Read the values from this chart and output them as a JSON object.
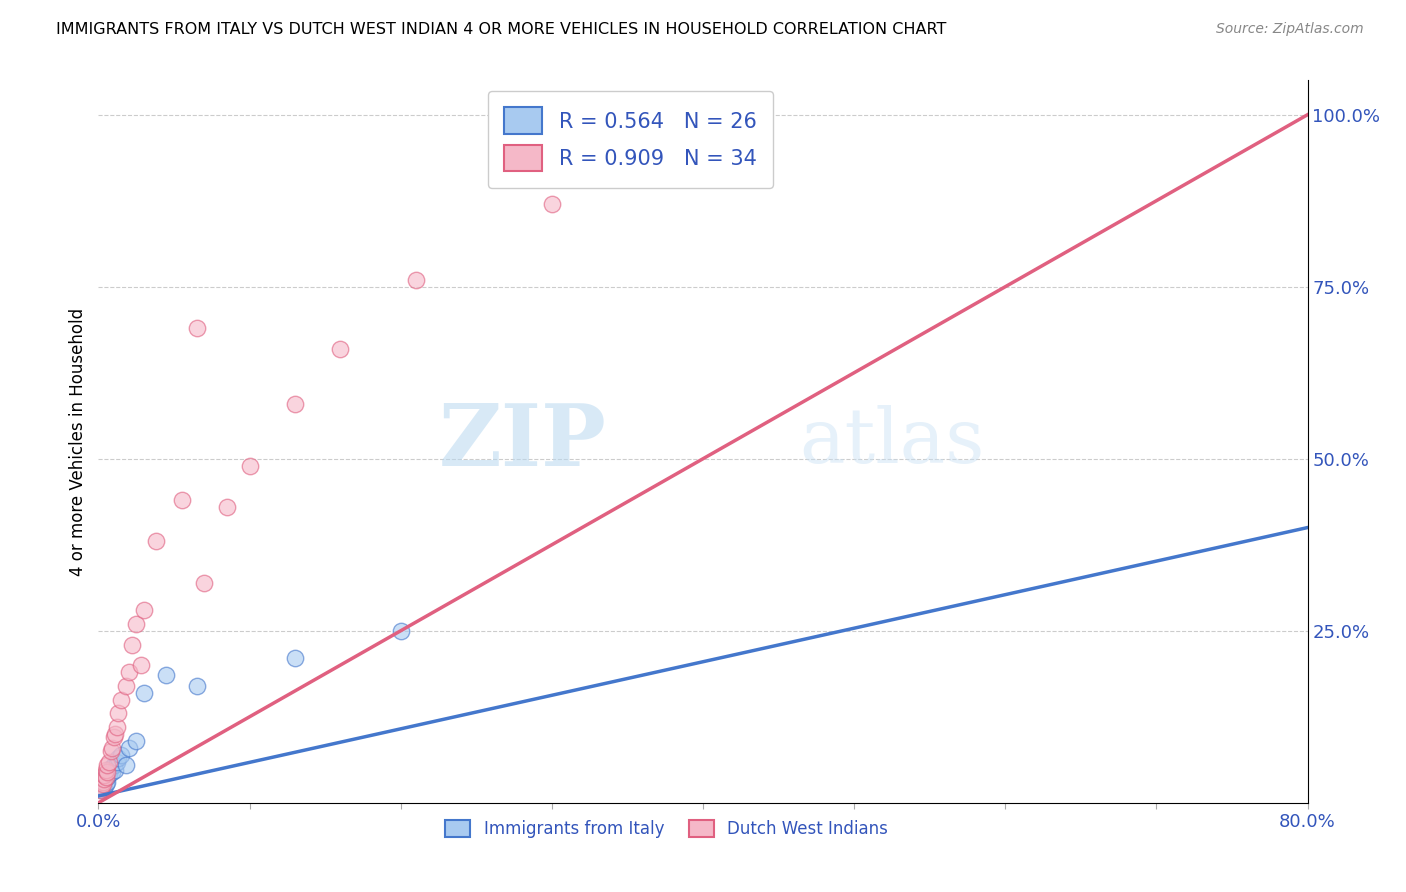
{
  "title": "IMMIGRANTS FROM ITALY VS DUTCH WEST INDIAN 4 OR MORE VEHICLES IN HOUSEHOLD CORRELATION CHART",
  "source": "Source: ZipAtlas.com",
  "ylabel": "4 or more Vehicles in Household",
  "xlim": [
    0.0,
    0.8
  ],
  "ylim": [
    0.0,
    1.05
  ],
  "legend1_R": "0.564",
  "legend1_N": "26",
  "legend2_R": "0.909",
  "legend2_N": "34",
  "color_italy": "#a8caf0",
  "color_dwi": "#f5b8c8",
  "color_italy_line": "#4477cc",
  "color_dwi_line": "#e06080",
  "watermark_zip": "ZIP",
  "watermark_atlas": "atlas",
  "italy_scatter_x": [
    0.001,
    0.002,
    0.003,
    0.003,
    0.004,
    0.004,
    0.005,
    0.005,
    0.006,
    0.006,
    0.007,
    0.008,
    0.009,
    0.01,
    0.011,
    0.012,
    0.013,
    0.015,
    0.018,
    0.02,
    0.025,
    0.03,
    0.045,
    0.065,
    0.13,
    0.2
  ],
  "italy_scatter_y": [
    0.02,
    0.018,
    0.025,
    0.03,
    0.022,
    0.035,
    0.028,
    0.04,
    0.03,
    0.038,
    0.042,
    0.05,
    0.045,
    0.055,
    0.048,
    0.06,
    0.065,
    0.07,
    0.055,
    0.08,
    0.09,
    0.16,
    0.185,
    0.17,
    0.21,
    0.25
  ],
  "dwi_scatter_x": [
    0.001,
    0.002,
    0.003,
    0.003,
    0.004,
    0.004,
    0.005,
    0.005,
    0.006,
    0.006,
    0.007,
    0.008,
    0.009,
    0.01,
    0.011,
    0.012,
    0.013,
    0.015,
    0.018,
    0.02,
    0.022,
    0.025,
    0.028,
    0.03,
    0.038,
    0.055,
    0.065,
    0.07,
    0.085,
    0.1,
    0.13,
    0.16,
    0.21,
    0.3
  ],
  "dwi_scatter_y": [
    0.018,
    0.022,
    0.03,
    0.028,
    0.035,
    0.04,
    0.038,
    0.048,
    0.045,
    0.055,
    0.06,
    0.075,
    0.08,
    0.095,
    0.1,
    0.11,
    0.13,
    0.15,
    0.17,
    0.19,
    0.23,
    0.26,
    0.2,
    0.28,
    0.38,
    0.44,
    0.69,
    0.32,
    0.43,
    0.49,
    0.58,
    0.66,
    0.76,
    0.87
  ],
  "italy_line_x0": 0.0,
  "italy_line_y0": 0.01,
  "italy_line_x1": 0.8,
  "italy_line_y1": 0.4,
  "dwi_line_x0": 0.0,
  "dwi_line_y0": 0.0,
  "dwi_line_x1": 0.8,
  "dwi_line_y1": 1.0
}
